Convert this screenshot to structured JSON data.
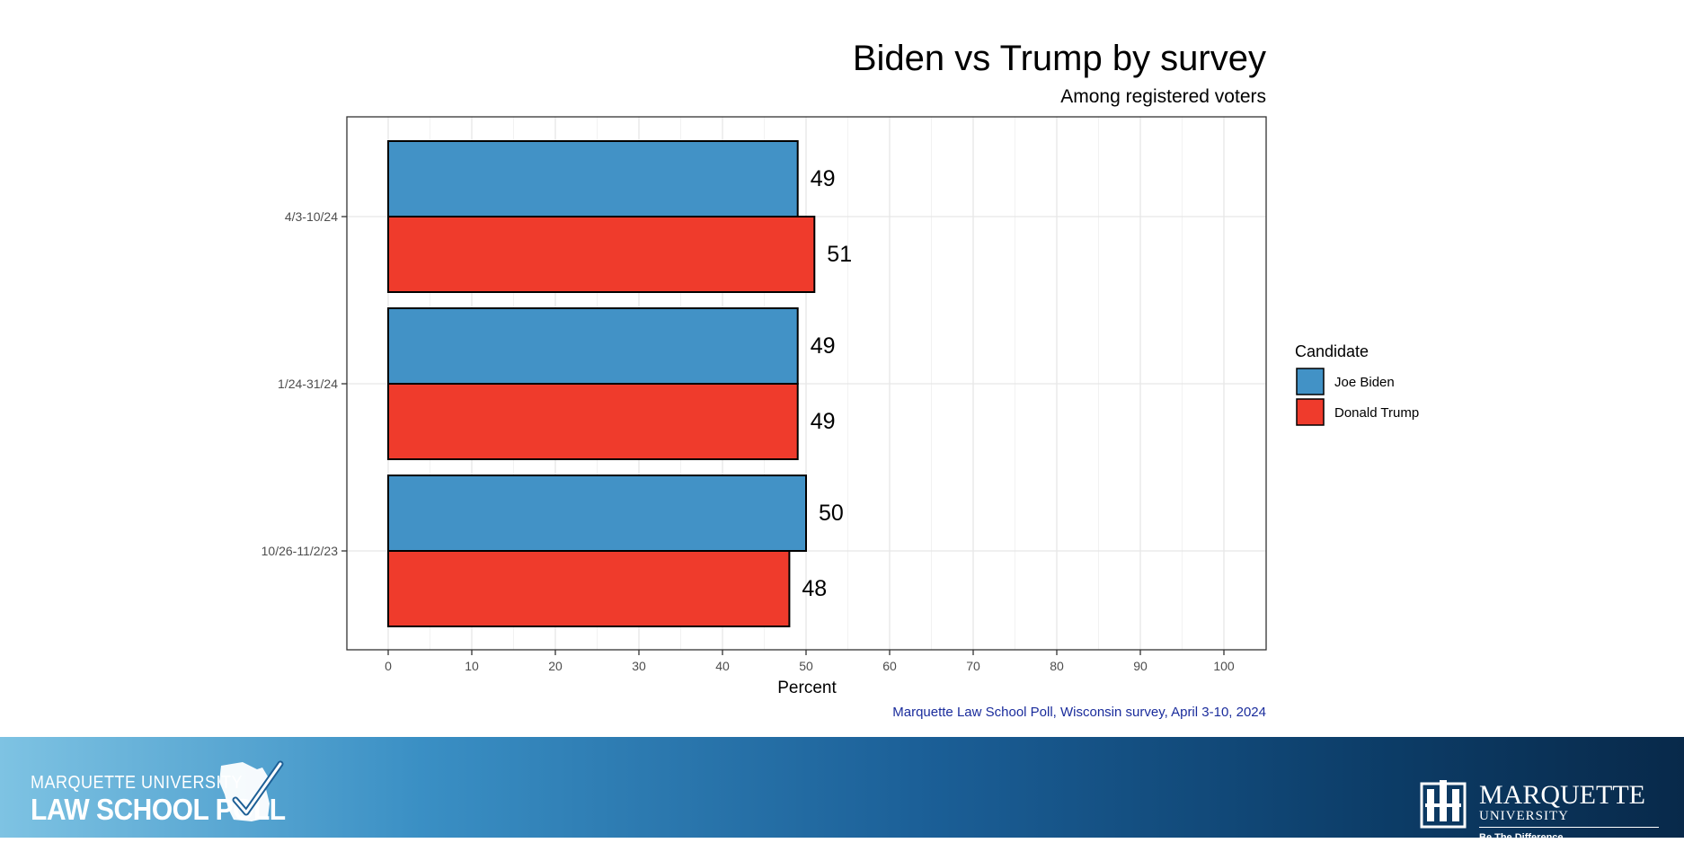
{
  "chart_data": {
    "type": "bar",
    "orientation": "horizontal",
    "title": "Biden vs Trump by survey",
    "subtitle": "Among registered voters",
    "xlabel": "Percent",
    "ylabel": "",
    "xlim": [
      0,
      100
    ],
    "xticks": [
      "0",
      "10",
      "20",
      "30",
      "40",
      "50",
      "60",
      "70",
      "80",
      "90",
      "100"
    ],
    "categories": [
      "4/3-10/24",
      "1/24-31/24",
      "10/26-11/2/23"
    ],
    "series": [
      {
        "name": "Joe Biden",
        "color": "#4292c6",
        "values": [
          49,
          49,
          50
        ]
      },
      {
        "name": "Donald Trump",
        "color": "#ef3b2c",
        "values": [
          51,
          49,
          48
        ]
      }
    ],
    "legend": {
      "title": "Candidate",
      "placement": "right"
    },
    "grid": true,
    "caption": "Marquette Law School Poll, Wisconsin survey, April 3-10, 2024"
  },
  "footer": {
    "left_logo": {
      "line1": "MARQUETTE UNIVERSITY",
      "line2": "LAW SCHOOL POLL"
    },
    "right_logo": {
      "name": "MARQUETTE",
      "sub": "UNIVERSITY",
      "tagline": "Be The Difference."
    },
    "background_colors": [
      "#7ec3e3",
      "#08294a"
    ]
  }
}
